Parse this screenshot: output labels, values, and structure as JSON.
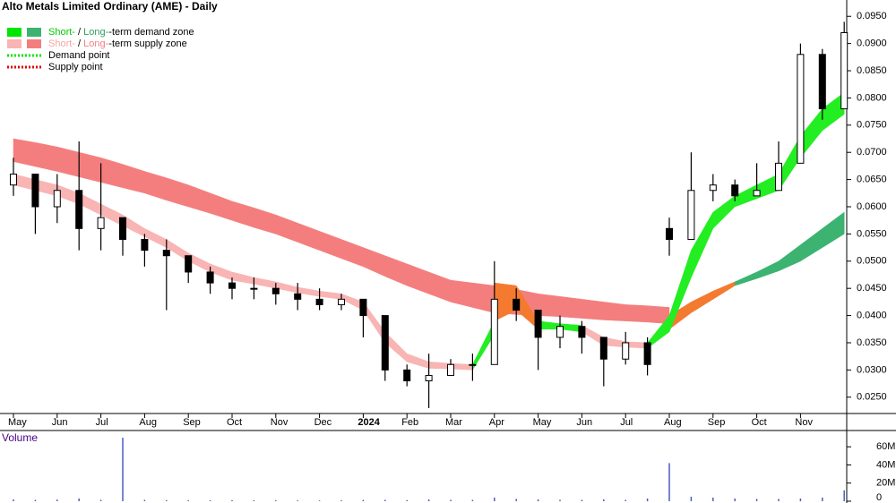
{
  "chart_data": {
    "type": "candlestick",
    "title": "Alto Metals Limited Ordinary (AME) - Daily",
    "legend": [
      {
        "swatches": [
          "#00e600",
          "#3cb371"
        ],
        "parts": [
          "Short-",
          " / ",
          "Long-",
          "-term demand zone"
        ],
        "part_colors": [
          "#00cc00",
          "#000000",
          "#2e9e5e",
          "#000000"
        ]
      },
      {
        "swatches": [
          "#f9b4b4",
          "#f47e7e"
        ],
        "parts": [
          "Short-",
          " / ",
          "Long-",
          "-term supply zone"
        ],
        "part_colors": [
          "#f7a6a6",
          "#000000",
          "#f47e7e",
          "#000000"
        ]
      },
      {
        "line": "#00e600",
        "parts": [
          "Demand point"
        ]
      },
      {
        "line": "#e00000",
        "parts": [
          "Supply point"
        ]
      }
    ],
    "categories": [
      "May",
      null,
      "Jun",
      null,
      "Jul",
      null,
      "Aug",
      null,
      "Sep",
      null,
      "Oct",
      null,
      "Nov",
      null,
      "Dec",
      null,
      "2024",
      null,
      "Feb",
      null,
      "Mar",
      null,
      "Apr",
      null,
      "May",
      null,
      "Jun",
      null,
      "Jul",
      null,
      "Aug",
      null,
      "Sep",
      null,
      "Oct",
      null,
      "Nov",
      null,
      null
    ],
    "open": [
      0.064,
      0.066,
      0.06,
      0.063,
      0.056,
      0.058,
      0.054,
      0.052,
      0.051,
      0.048,
      0.046,
      0.045,
      0.045,
      0.044,
      0.043,
      0.042,
      0.043,
      0.04,
      0.03,
      0.028,
      0.029,
      0.031,
      0.031,
      0.043,
      0.041,
      0.036,
      0.038,
      0.036,
      0.032,
      0.035,
      0.056,
      0.054,
      0.063,
      0.064,
      0.062,
      0.063,
      0.068,
      0.088,
      0.078
    ],
    "high": [
      0.069,
      0.066,
      0.066,
      0.072,
      0.068,
      0.058,
      0.055,
      0.054,
      0.051,
      0.049,
      0.047,
      0.047,
      0.046,
      0.046,
      0.045,
      0.044,
      0.043,
      0.04,
      0.031,
      0.033,
      0.032,
      0.033,
      0.05,
      0.045,
      0.041,
      0.04,
      0.039,
      0.036,
      0.037,
      0.036,
      0.058,
      0.07,
      0.066,
      0.065,
      0.068,
      0.072,
      0.09,
      0.089,
      0.094
    ],
    "low": [
      0.062,
      0.055,
      0.057,
      0.052,
      0.052,
      0.051,
      0.049,
      0.041,
      0.046,
      0.044,
      0.043,
      0.043,
      0.042,
      0.041,
      0.041,
      0.041,
      0.036,
      0.028,
      0.027,
      0.023,
      0.029,
      0.028,
      0.031,
      0.039,
      0.03,
      0.034,
      0.033,
      0.027,
      0.031,
      0.029,
      0.051,
      0.054,
      0.061,
      0.061,
      0.062,
      0.063,
      0.068,
      0.076,
      0.078
    ],
    "close": [
      0.066,
      0.06,
      0.063,
      0.056,
      0.058,
      0.054,
      0.052,
      0.051,
      0.048,
      0.046,
      0.045,
      0.045,
      0.044,
      0.043,
      0.042,
      0.043,
      0.04,
      0.03,
      0.028,
      0.029,
      0.031,
      0.031,
      0.043,
      0.041,
      0.036,
      0.038,
      0.036,
      0.032,
      0.035,
      0.031,
      0.054,
      0.063,
      0.064,
      0.062,
      0.063,
      0.068,
      0.088,
      0.078,
      0.092
    ],
    "zones": [
      {
        "color": "#f47e7e",
        "x": [
          0,
          1,
          2,
          3,
          4,
          5,
          6,
          7,
          8,
          9,
          10,
          11,
          12,
          13,
          14,
          15,
          16,
          17,
          18,
          19,
          20,
          21,
          22,
          23,
          24,
          25,
          26,
          27,
          28,
          29,
          30
        ],
        "upper": [
          0.0725,
          0.0718,
          0.071,
          0.07,
          0.069,
          0.0678,
          0.0665,
          0.0653,
          0.064,
          0.0625,
          0.061,
          0.0598,
          0.0585,
          0.057,
          0.0555,
          0.054,
          0.0525,
          0.051,
          0.0495,
          0.048,
          0.0465,
          0.046,
          0.0455,
          0.0448,
          0.044,
          0.0435,
          0.043,
          0.0425,
          0.042,
          0.0418,
          0.0415
        ],
        "lower": [
          0.0683,
          0.0674,
          0.0665,
          0.0655,
          0.0645,
          0.0635,
          0.0625,
          0.0612,
          0.06,
          0.0588,
          0.0575,
          0.0562,
          0.055,
          0.0535,
          0.052,
          0.0505,
          0.049,
          0.0472,
          0.0455,
          0.044,
          0.0425,
          0.0415,
          0.0405,
          0.0402,
          0.04,
          0.0398,
          0.0395,
          0.0392,
          0.039,
          0.0388,
          0.0385
        ]
      },
      {
        "color": "#f47a30",
        "x": [
          30,
          31,
          32,
          33
        ],
        "upper": [
          0.04,
          0.0425,
          0.0445,
          0.0462
        ],
        "lower": [
          0.0375,
          0.0405,
          0.043,
          0.0455
        ]
      },
      {
        "color": "#3cb371",
        "x": [
          33,
          34,
          35,
          36,
          37,
          38
        ],
        "upper": [
          0.0462,
          0.048,
          0.05,
          0.053,
          0.056,
          0.059
        ],
        "lower": [
          0.0455,
          0.0468,
          0.0482,
          0.05,
          0.0525,
          0.055
        ]
      },
      {
        "color": "#f9b4b4",
        "x": [
          0,
          1,
          2,
          3,
          4,
          5,
          6,
          7,
          8,
          9,
          10,
          11,
          12,
          13,
          14,
          15,
          16,
          17,
          18,
          19,
          20,
          21
        ],
        "upper": [
          0.066,
          0.065,
          0.064,
          0.0625,
          0.0605,
          0.0585,
          0.056,
          0.054,
          0.0515,
          0.0495,
          0.048,
          0.047,
          0.0462,
          0.0452,
          0.0445,
          0.044,
          0.0425,
          0.037,
          0.033,
          0.0315,
          0.0312,
          0.031
        ],
        "lower": [
          0.064,
          0.063,
          0.062,
          0.0605,
          0.0585,
          0.0565,
          0.0545,
          0.0525,
          0.05,
          0.048,
          0.0465,
          0.0458,
          0.045,
          0.0442,
          0.0435,
          0.043,
          0.041,
          0.035,
          0.0315,
          0.0303,
          0.0302,
          0.03
        ]
      },
      {
        "color": "#22ee22",
        "x": [
          21,
          22
        ],
        "upper": [
          0.031,
          0.039
        ],
        "lower": [
          0.03,
          0.0365
        ]
      },
      {
        "color": "#f47a30",
        "x": [
          22,
          23,
          24
        ],
        "upper": [
          0.046,
          0.0455,
          0.039
        ],
        "lower": [
          0.039,
          0.041,
          0.0375
        ]
      },
      {
        "color": "#22ee22",
        "x": [
          24,
          25,
          26
        ],
        "upper": [
          0.039,
          0.0385,
          0.0382
        ],
        "lower": [
          0.0375,
          0.0375,
          0.037
        ]
      },
      {
        "color": "#f9b4b4",
        "x": [
          26,
          27,
          28,
          29
        ],
        "upper": [
          0.0382,
          0.036,
          0.0352,
          0.035
        ],
        "lower": [
          0.037,
          0.0345,
          0.0342,
          0.034
        ]
      },
      {
        "color": "#22ee22",
        "x": [
          29,
          30,
          31,
          32,
          33,
          34,
          35,
          36,
          37,
          38
        ],
        "upper": [
          0.035,
          0.04,
          0.052,
          0.059,
          0.062,
          0.064,
          0.066,
          0.073,
          0.078,
          0.081
        ],
        "lower": [
          0.034,
          0.037,
          0.047,
          0.056,
          0.06,
          0.0615,
          0.063,
          0.069,
          0.074,
          0.077
        ]
      }
    ],
    "ylim": [
      0.022,
      0.098
    ],
    "yticks": [
      {
        "value": 0.025,
        "label": "0.0250"
      },
      {
        "value": 0.03,
        "label": "0.0300"
      },
      {
        "value": 0.035,
        "label": "0.0350"
      },
      {
        "value": 0.04,
        "label": "0.0400"
      },
      {
        "value": 0.045,
        "label": "0.0450"
      },
      {
        "value": 0.05,
        "label": "0.0500"
      },
      {
        "value": 0.055,
        "label": "0.0550"
      },
      {
        "value": 0.06,
        "label": "0.0600"
      },
      {
        "value": 0.065,
        "label": "0.0650"
      },
      {
        "value": 0.07,
        "label": "0.0700"
      },
      {
        "value": 0.075,
        "label": "0.0750"
      },
      {
        "value": 0.08,
        "label": "0.0800"
      },
      {
        "value": 0.085,
        "label": "0.0850"
      },
      {
        "value": 0.09,
        "label": "0.0900"
      },
      {
        "value": 0.095,
        "label": "0.0950"
      }
    ],
    "volume": {
      "label": "Volume",
      "color": "#4a5cc8",
      "values": [
        2000000,
        1500000,
        1800000,
        3000000,
        1500000,
        70000000,
        1500000,
        1200000,
        1000000,
        1000000,
        1200000,
        1000000,
        1000000,
        900000,
        800000,
        1000000,
        1500000,
        1500000,
        1200000,
        2000000,
        1500000,
        1500000,
        4000000,
        2500000,
        2000000,
        1500000,
        1500000,
        2000000,
        1500000,
        3000000,
        42000000,
        5000000,
        4000000,
        3000000,
        2500000,
        2500000,
        3000000,
        4000000,
        12000000
      ],
      "ylim": [
        0,
        75000000
      ],
      "yticks": [
        {
          "value": 0,
          "label": "0"
        },
        {
          "value": 20000000,
          "label": "20M"
        },
        {
          "value": 40000000,
          "label": "40M"
        },
        {
          "value": 60000000,
          "label": "60M"
        }
      ]
    }
  }
}
